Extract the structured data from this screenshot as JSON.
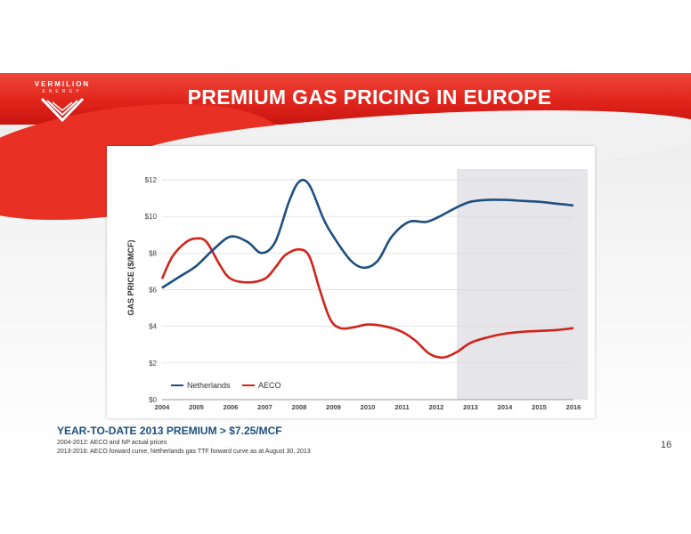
{
  "header": {
    "logo_name": "VERMILION",
    "logo_sub": "ENERGY",
    "title": "PREMIUM GAS PRICING IN EUROPE"
  },
  "footer": {
    "premium": "YEAR-TO-DATE 2013 PREMIUM > $7.25/MCF",
    "note1": "2004-2012: AECO and NP actual prices",
    "note2": "2013-2016: AECO forward curve, Netherlands gas TTF forward curve as at August 30, 2013",
    "page_number": "16"
  },
  "colors": {
    "accent": "#e0251c",
    "netherlands": "#1e4f80",
    "aeco": "#d2231a",
    "forecast_shade": "#e6e6ea"
  },
  "chart_data": {
    "type": "line",
    "title": "",
    "xlabel": "",
    "ylabel": "GAS PRICE ($/MCF)",
    "x": [
      2004,
      2005,
      2006,
      2007,
      2008,
      2009,
      2010,
      2011,
      2012,
      2013,
      2014,
      2015,
      2016
    ],
    "xlim": [
      2004,
      2016
    ],
    "ylim": [
      0,
      12
    ],
    "yticks": [
      0,
      2,
      4,
      6,
      8,
      10,
      12
    ],
    "ytick_labels": [
      "$0",
      "$2",
      "$4",
      "$6",
      "$8",
      "$10",
      "$12"
    ],
    "xtick_labels": [
      "2004",
      "2005",
      "2006",
      "2007",
      "2008",
      "2009",
      "2010",
      "2011",
      "2012",
      "2013",
      "2014",
      "2015",
      "2016"
    ],
    "grid": true,
    "legend_position": "bottom-left",
    "forecast_region": [
      2012.6,
      2016
    ],
    "series": [
      {
        "name": "Netherlands",
        "x": [
          2004,
          2004.5,
          2005,
          2005.5,
          2006,
          2006.5,
          2006.9,
          2007.3,
          2007.7,
          2008,
          2008.3,
          2008.7,
          2009,
          2009.5,
          2009.9,
          2010.3,
          2010.7,
          2011.2,
          2011.7,
          2012.1,
          2012.6,
          2013,
          2013.5,
          2014,
          2014.5,
          2015,
          2015.5,
          2016
        ],
        "y": [
          6.1,
          6.7,
          7.3,
          8.2,
          8.9,
          8.6,
          8.0,
          8.6,
          10.8,
          11.9,
          11.7,
          9.9,
          8.9,
          7.6,
          7.2,
          7.6,
          8.9,
          9.7,
          9.7,
          10.0,
          10.5,
          10.8,
          10.9,
          10.9,
          10.85,
          10.8,
          10.7,
          10.6
        ]
      },
      {
        "name": "AECO",
        "x": [
          2004,
          2004.3,
          2004.7,
          2005,
          2005.3,
          2005.7,
          2006,
          2006.5,
          2007,
          2007.3,
          2007.6,
          2008,
          2008.3,
          2008.6,
          2008.9,
          2009.2,
          2009.6,
          2010,
          2010.5,
          2011,
          2011.4,
          2011.8,
          2012.2,
          2012.6,
          2013,
          2013.5,
          2014,
          2014.5,
          2015,
          2015.5,
          2016
        ],
        "y": [
          6.6,
          7.8,
          8.6,
          8.8,
          8.6,
          7.3,
          6.6,
          6.4,
          6.6,
          7.2,
          7.9,
          8.2,
          7.8,
          6.0,
          4.4,
          3.9,
          3.95,
          4.1,
          4.0,
          3.7,
          3.2,
          2.5,
          2.3,
          2.6,
          3.1,
          3.4,
          3.6,
          3.7,
          3.75,
          3.8,
          3.9
        ]
      }
    ]
  }
}
